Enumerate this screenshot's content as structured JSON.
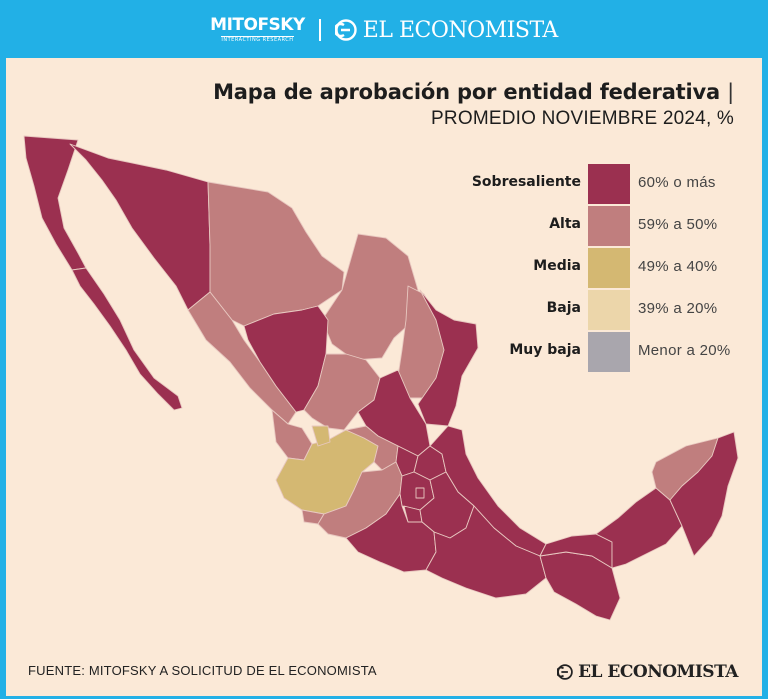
{
  "header": {
    "brand_left": "MITOFSKY",
    "brand_left_sub": "INTERACTING RESEARCH",
    "brand_right": "EL ECONOMISTA"
  },
  "title": {
    "main": "Mapa de aprobación por entidad federativa",
    "separator": "|",
    "subtitle": "PROMEDIO NOVIEMBRE 2024, %"
  },
  "legend": [
    {
      "label": "Sobresaliente",
      "range": "60% o más",
      "color": "#9b3050"
    },
    {
      "label": "Alta",
      "range": "59% a 50%",
      "color": "#c07e7e"
    },
    {
      "label": "Media",
      "range": "49% a 40%",
      "color": "#d4b872"
    },
    {
      "label": "Baja",
      "range": "39% a 20%",
      "color": "#ecd6aa"
    },
    {
      "label": "Muy baja",
      "range": "Menor a 20%",
      "color": "#a9a6ad"
    }
  ],
  "colors": {
    "frame": "#22b0e6",
    "panel": "#fbe9d7",
    "sobresaliente": "#9b3050",
    "alta": "#c07e7e",
    "media": "#d4b872",
    "border": "#e8c8c0"
  },
  "map": {
    "states": [
      {
        "name": "Baja California",
        "category": "Sobresaliente"
      },
      {
        "name": "Baja California Sur",
        "category": "Sobresaliente"
      },
      {
        "name": "Sonora",
        "category": "Sobresaliente"
      },
      {
        "name": "Chihuahua",
        "category": "Alta"
      },
      {
        "name": "Coahuila",
        "category": "Alta"
      },
      {
        "name": "Nuevo León",
        "category": "Alta"
      },
      {
        "name": "Tamaulipas",
        "category": "Sobresaliente"
      },
      {
        "name": "Sinaloa",
        "category": "Alta"
      },
      {
        "name": "Durango",
        "category": "Sobresaliente"
      },
      {
        "name": "Zacatecas",
        "category": "Alta"
      },
      {
        "name": "San Luis Potosí",
        "category": "Sobresaliente"
      },
      {
        "name": "Nayarit",
        "category": "Alta"
      },
      {
        "name": "Aguascalientes",
        "category": "Media"
      },
      {
        "name": "Jalisco",
        "category": "Media"
      },
      {
        "name": "Guanajuato",
        "category": "Alta"
      },
      {
        "name": "Querétaro",
        "category": "Sobresaliente"
      },
      {
        "name": "Hidalgo",
        "category": "Sobresaliente"
      },
      {
        "name": "Veracruz",
        "category": "Sobresaliente"
      },
      {
        "name": "Colima",
        "category": "Alta"
      },
      {
        "name": "Michoacán",
        "category": "Alta"
      },
      {
        "name": "Estado de México",
        "category": "Sobresaliente"
      },
      {
        "name": "Ciudad de México",
        "category": "Sobresaliente"
      },
      {
        "name": "Morelos",
        "category": "Sobresaliente"
      },
      {
        "name": "Puebla",
        "category": "Sobresaliente"
      },
      {
        "name": "Tlaxcala",
        "category": "Sobresaliente"
      },
      {
        "name": "Guerrero",
        "category": "Sobresaliente"
      },
      {
        "name": "Oaxaca",
        "category": "Sobresaliente"
      },
      {
        "name": "Chiapas",
        "category": "Sobresaliente"
      },
      {
        "name": "Tabasco",
        "category": "Sobresaliente"
      },
      {
        "name": "Campeche",
        "category": "Sobresaliente"
      },
      {
        "name": "Yucatán",
        "category": "Alta"
      },
      {
        "name": "Quintana Roo",
        "category": "Sobresaliente"
      }
    ]
  },
  "footer": {
    "source": "FUENTE: MITOFSKY A SOLICITUD DE EL ECONOMISTA",
    "logo": "EL ECONOMISTA"
  }
}
